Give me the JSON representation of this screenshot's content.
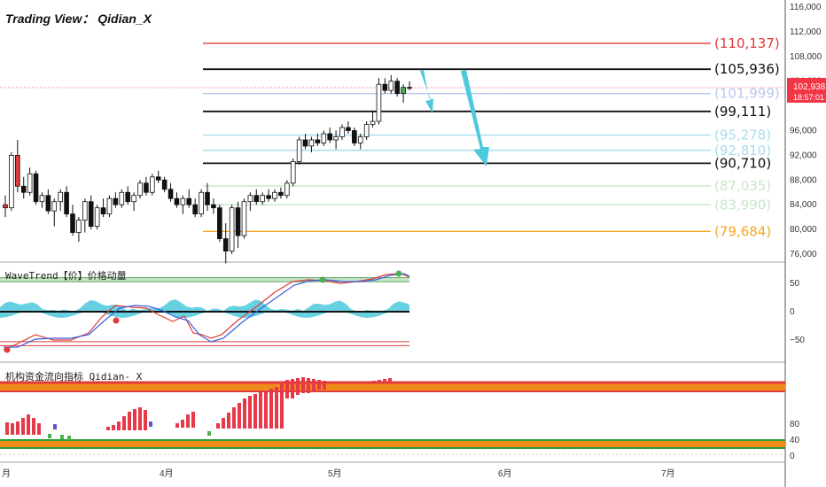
{
  "title": "Trading View： Qidian_X",
  "price_badge": {
    "price": "102,938",
    "countdown": "18:57:01",
    "color": "#f23645",
    "value": 102938
  },
  "panes": {
    "main": {
      "y_ticks": [
        "116,000",
        "112,000",
        "108,000",
        "104,000",
        "96,000",
        "92,000",
        "88,000",
        "84,000",
        "80,000",
        "76,000"
      ],
      "y_tick_values": [
        116000,
        112000,
        108000,
        104000,
        96000,
        92000,
        88000,
        84000,
        80000,
        76000
      ],
      "levels": [
        {
          "label": "(110,137)",
          "value": 110137,
          "color": "#e03a3a",
          "label_color": "#e03a3a"
        },
        {
          "label": "(105,936)",
          "value": 105936,
          "color": "#111111",
          "label_color": "#111111"
        },
        {
          "label": "(101,999)",
          "value": 101999,
          "color": "#b8c8f0",
          "label_color": "#b8c8f0"
        },
        {
          "label": "(99,111)",
          "value": 99111,
          "color": "#111111",
          "label_color": "#111111"
        },
        {
          "label": "(95,278)",
          "value": 95278,
          "color": "#a8dcef",
          "label_color": "#a8dcef"
        },
        {
          "label": "(92,810)",
          "value": 92810,
          "color": "#a8dcef",
          "label_color": "#a8dcef"
        },
        {
          "label": "(90,710)",
          "value": 90710,
          "color": "#111111",
          "label_color": "#111111"
        },
        {
          "label": "(87,035)",
          "value": 87035,
          "color": "#c8e6c8",
          "label_color": "#c8e6c8"
        },
        {
          "label": "(83,990)",
          "value": 83990,
          "color": "#c8e6c8",
          "label_color": "#c8e6c8"
        },
        {
          "label": "(79,684)",
          "value": 79684,
          "color": "#f5a623",
          "label_color": "#f5a623"
        }
      ]
    },
    "wavetrend": {
      "title": "WaveTrend【价】价格动量",
      "y_ticks": [
        "50",
        "0",
        "−50"
      ],
      "y_tick_values": [
        50,
        0,
        -50
      ]
    },
    "flow": {
      "title": "机构资金流向指标 Qidian- X",
      "y_ticks": [
        "80",
        "40",
        "0"
      ],
      "y_tick_values": [
        80,
        40,
        0
      ]
    }
  },
  "x_ticks": [
    "月",
    "4月",
    "5月",
    "6月",
    "7月"
  ],
  "colors": {
    "up": "#ffffff",
    "down": "#111111",
    "arrow": "#4cc9dc",
    "wt1": "#e03a3a",
    "wt2": "#3a5fe0",
    "wt_fill": "#4cc9dc",
    "flow_bar": "#e8394a",
    "flow_band": "#f08c1a",
    "flow_band_edge": "#e03a3a",
    "flow_low_band": "#f08c1a",
    "flow_low_edge": "#2e9a3a"
  },
  "chart_data": {
    "type": "candlestick",
    "title": "Trading View： Qidian_X",
    "ylim": [
      75000,
      118000
    ],
    "x": [
      "月",
      "4月",
      "5月",
      "6月",
      "7月"
    ],
    "levels": [
      110137,
      105936,
      101999,
      99111,
      95278,
      92810,
      90710,
      87035,
      83990,
      79684
    ],
    "last_price": 102938,
    "ohlc": [
      [
        84000,
        85500,
        82000,
        83500
      ],
      [
        83500,
        92500,
        83000,
        92000
      ],
      [
        92000,
        94500,
        86000,
        87000
      ],
      [
        87000,
        88500,
        85000,
        86000
      ],
      [
        86000,
        90000,
        85500,
        89000
      ],
      [
        89000,
        89500,
        84000,
        84500
      ],
      [
        84500,
        86000,
        83500,
        85500
      ],
      [
        85500,
        86500,
        82500,
        83000
      ],
      [
        83000,
        85000,
        80500,
        84500
      ],
      [
        84500,
        86500,
        83000,
        86000
      ],
      [
        86000,
        87000,
        82000,
        82500
      ],
      [
        82500,
        84000,
        79000,
        79500
      ],
      [
        79500,
        82000,
        78000,
        81500
      ],
      [
        81500,
        85000,
        79500,
        84500
      ],
      [
        84500,
        85500,
        80000,
        80500
      ],
      [
        80500,
        84000,
        80000,
        83500
      ],
      [
        83500,
        85000,
        82000,
        82500
      ],
      [
        82500,
        85500,
        82000,
        85000
      ],
      [
        85000,
        86000,
        83500,
        84000
      ],
      [
        84000,
        86500,
        83500,
        86000
      ],
      [
        86000,
        87000,
        84000,
        84500
      ],
      [
        84500,
        86000,
        83000,
        85500
      ],
      [
        85500,
        88000,
        85000,
        87500
      ],
      [
        87500,
        88500,
        85500,
        86000
      ],
      [
        86000,
        89000,
        85500,
        88500
      ],
      [
        88500,
        89500,
        87500,
        88000
      ],
      [
        88000,
        88500,
        86000,
        86500
      ],
      [
        86500,
        87500,
        84500,
        85000
      ],
      [
        85000,
        86000,
        83500,
        84000
      ],
      [
        84000,
        85500,
        82500,
        85000
      ],
      [
        85000,
        86500,
        83500,
        84000
      ],
      [
        84000,
        85000,
        82000,
        82500
      ],
      [
        82500,
        86500,
        82000,
        86000
      ],
      [
        86000,
        87500,
        83000,
        84000
      ],
      [
        84000,
        85000,
        82500,
        83500
      ],
      [
        83500,
        84000,
        78000,
        78500
      ],
      [
        78500,
        81000,
        74500,
        76500
      ],
      [
        76500,
        84000,
        76000,
        83500
      ],
      [
        83500,
        84500,
        77000,
        79000
      ],
      [
        79000,
        85000,
        78500,
        84500
      ],
      [
        84500,
        86000,
        83000,
        85500
      ],
      [
        85500,
        86500,
        84000,
        84500
      ],
      [
        84500,
        86000,
        84000,
        85500
      ],
      [
        85500,
        86500,
        84500,
        85000
      ],
      [
        85000,
        86500,
        84500,
        86000
      ],
      [
        86000,
        86800,
        85000,
        85500
      ],
      [
        85500,
        88000,
        85000,
        87500
      ],
      [
        87500,
        91500,
        87000,
        91000
      ],
      [
        91000,
        95000,
        90500,
        94500
      ],
      [
        94500,
        95500,
        93000,
        93500
      ],
      [
        93500,
        95000,
        92500,
        94500
      ],
      [
        94500,
        95500,
        93500,
        94000
      ],
      [
        94000,
        96000,
        93500,
        95500
      ],
      [
        95500,
        96500,
        94000,
        94500
      ],
      [
        94500,
        96000,
        93000,
        95000
      ],
      [
        95000,
        97000,
        94500,
        96500
      ],
      [
        96500,
        97500,
        95500,
        96000
      ],
      [
        96000,
        96500,
        93500,
        94000
      ],
      [
        94000,
        95500,
        93000,
        95000
      ],
      [
        95000,
        97500,
        94500,
        97000
      ],
      [
        97000,
        99000,
        96500,
        97500
      ],
      [
        97500,
        104500,
        97000,
        103500
      ],
      [
        103500,
        104500,
        102000,
        102500
      ],
      [
        102500,
        105000,
        102000,
        104000
      ],
      [
        104000,
        104500,
        101500,
        102000
      ],
      [
        102000,
        103500,
        100500,
        103000
      ],
      [
        103000,
        104000,
        102500,
        102938
      ]
    ]
  }
}
